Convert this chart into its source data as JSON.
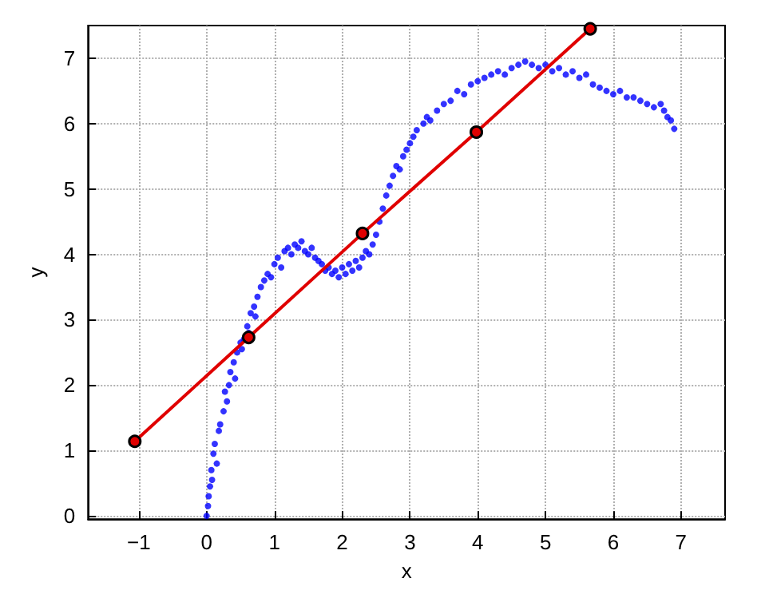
{
  "chart_data": {
    "type": "scatter",
    "xlabel": "x",
    "ylabel": "y",
    "xlim": [
      -1.75,
      7.65
    ],
    "ylim": [
      -0.05,
      7.5
    ],
    "xticks": [
      -1,
      0,
      1,
      2,
      3,
      4,
      5,
      6,
      7
    ],
    "yticks": [
      0,
      1,
      2,
      3,
      4,
      5,
      6,
      7
    ],
    "grid": true,
    "marker": "circle",
    "series": [
      {
        "color": "#0000ff",
        "x": [
          0.0,
          0.02,
          0.03,
          0.05,
          0.07,
          0.08,
          0.1,
          0.12,
          0.15,
          0.18,
          0.2,
          0.25,
          0.27,
          0.3,
          0.33,
          0.35,
          0.4,
          0.42,
          0.45,
          0.5,
          0.52,
          0.55,
          0.6,
          0.62,
          0.65,
          0.7,
          0.72,
          0.75,
          0.8,
          0.85,
          0.9,
          0.95,
          1.0,
          1.05,
          1.1,
          1.15,
          1.2,
          1.25,
          1.3,
          1.35,
          1.4,
          1.45,
          1.5,
          1.55,
          1.6,
          1.65,
          1.7,
          1.75,
          1.8,
          1.85,
          1.9,
          1.95,
          2.0,
          2.05,
          2.1,
          2.15,
          2.2,
          2.25,
          2.3,
          2.35,
          2.4,
          2.45,
          2.5,
          2.55,
          2.6,
          2.65,
          2.7,
          2.75,
          2.8,
          2.85,
          2.9,
          2.95,
          3.0,
          3.05,
          3.1,
          3.2,
          3.25,
          3.3,
          3.4,
          3.5,
          3.6,
          3.7,
          3.8,
          3.9,
          4.0,
          4.1,
          4.2,
          4.3,
          4.4,
          4.5,
          4.6,
          4.7,
          4.8,
          4.9,
          5.0,
          5.1,
          5.2,
          5.3,
          5.4,
          5.5,
          5.6,
          5.7,
          5.8,
          5.9,
          6.0,
          6.1,
          6.2,
          6.3,
          6.4,
          6.5,
          6.6,
          6.7,
          6.75,
          6.8,
          6.85,
          6.9
        ],
        "values": [
          0.0,
          0.15,
          0.3,
          0.45,
          0.7,
          0.55,
          0.95,
          1.1,
          0.8,
          1.3,
          1.4,
          1.6,
          1.9,
          1.75,
          2.0,
          2.2,
          2.35,
          2.1,
          2.5,
          2.65,
          2.55,
          2.7,
          2.9,
          2.8,
          3.1,
          3.2,
          3.05,
          3.35,
          3.5,
          3.6,
          3.7,
          3.65,
          3.85,
          3.95,
          3.8,
          4.05,
          4.1,
          4.0,
          4.15,
          4.1,
          4.2,
          4.05,
          4.0,
          4.1,
          3.95,
          3.9,
          3.85,
          3.75,
          3.8,
          3.7,
          3.75,
          3.65,
          3.8,
          3.7,
          3.85,
          3.75,
          3.9,
          3.8,
          3.95,
          4.05,
          4.0,
          4.15,
          4.3,
          4.5,
          4.7,
          4.9,
          5.05,
          5.2,
          5.35,
          5.3,
          5.5,
          5.6,
          5.7,
          5.8,
          5.9,
          6.0,
          6.1,
          6.05,
          6.2,
          6.3,
          6.35,
          6.5,
          6.45,
          6.6,
          6.65,
          6.7,
          6.75,
          6.8,
          6.75,
          6.85,
          6.9,
          6.95,
          6.9,
          6.85,
          6.9,
          6.8,
          6.85,
          6.75,
          6.8,
          6.7,
          6.75,
          6.6,
          6.55,
          6.5,
          6.45,
          6.5,
          6.4,
          6.4,
          6.35,
          6.3,
          6.25,
          6.3,
          6.2,
          6.1,
          6.05,
          5.92
        ]
      },
      {
        "type": "line",
        "color": "#e00000",
        "x": [
          -1.06,
          0.62,
          2.3,
          3.98,
          5.66
        ],
        "values": [
          1.14,
          2.73,
          4.32,
          5.87,
          7.45
        ]
      }
    ]
  }
}
